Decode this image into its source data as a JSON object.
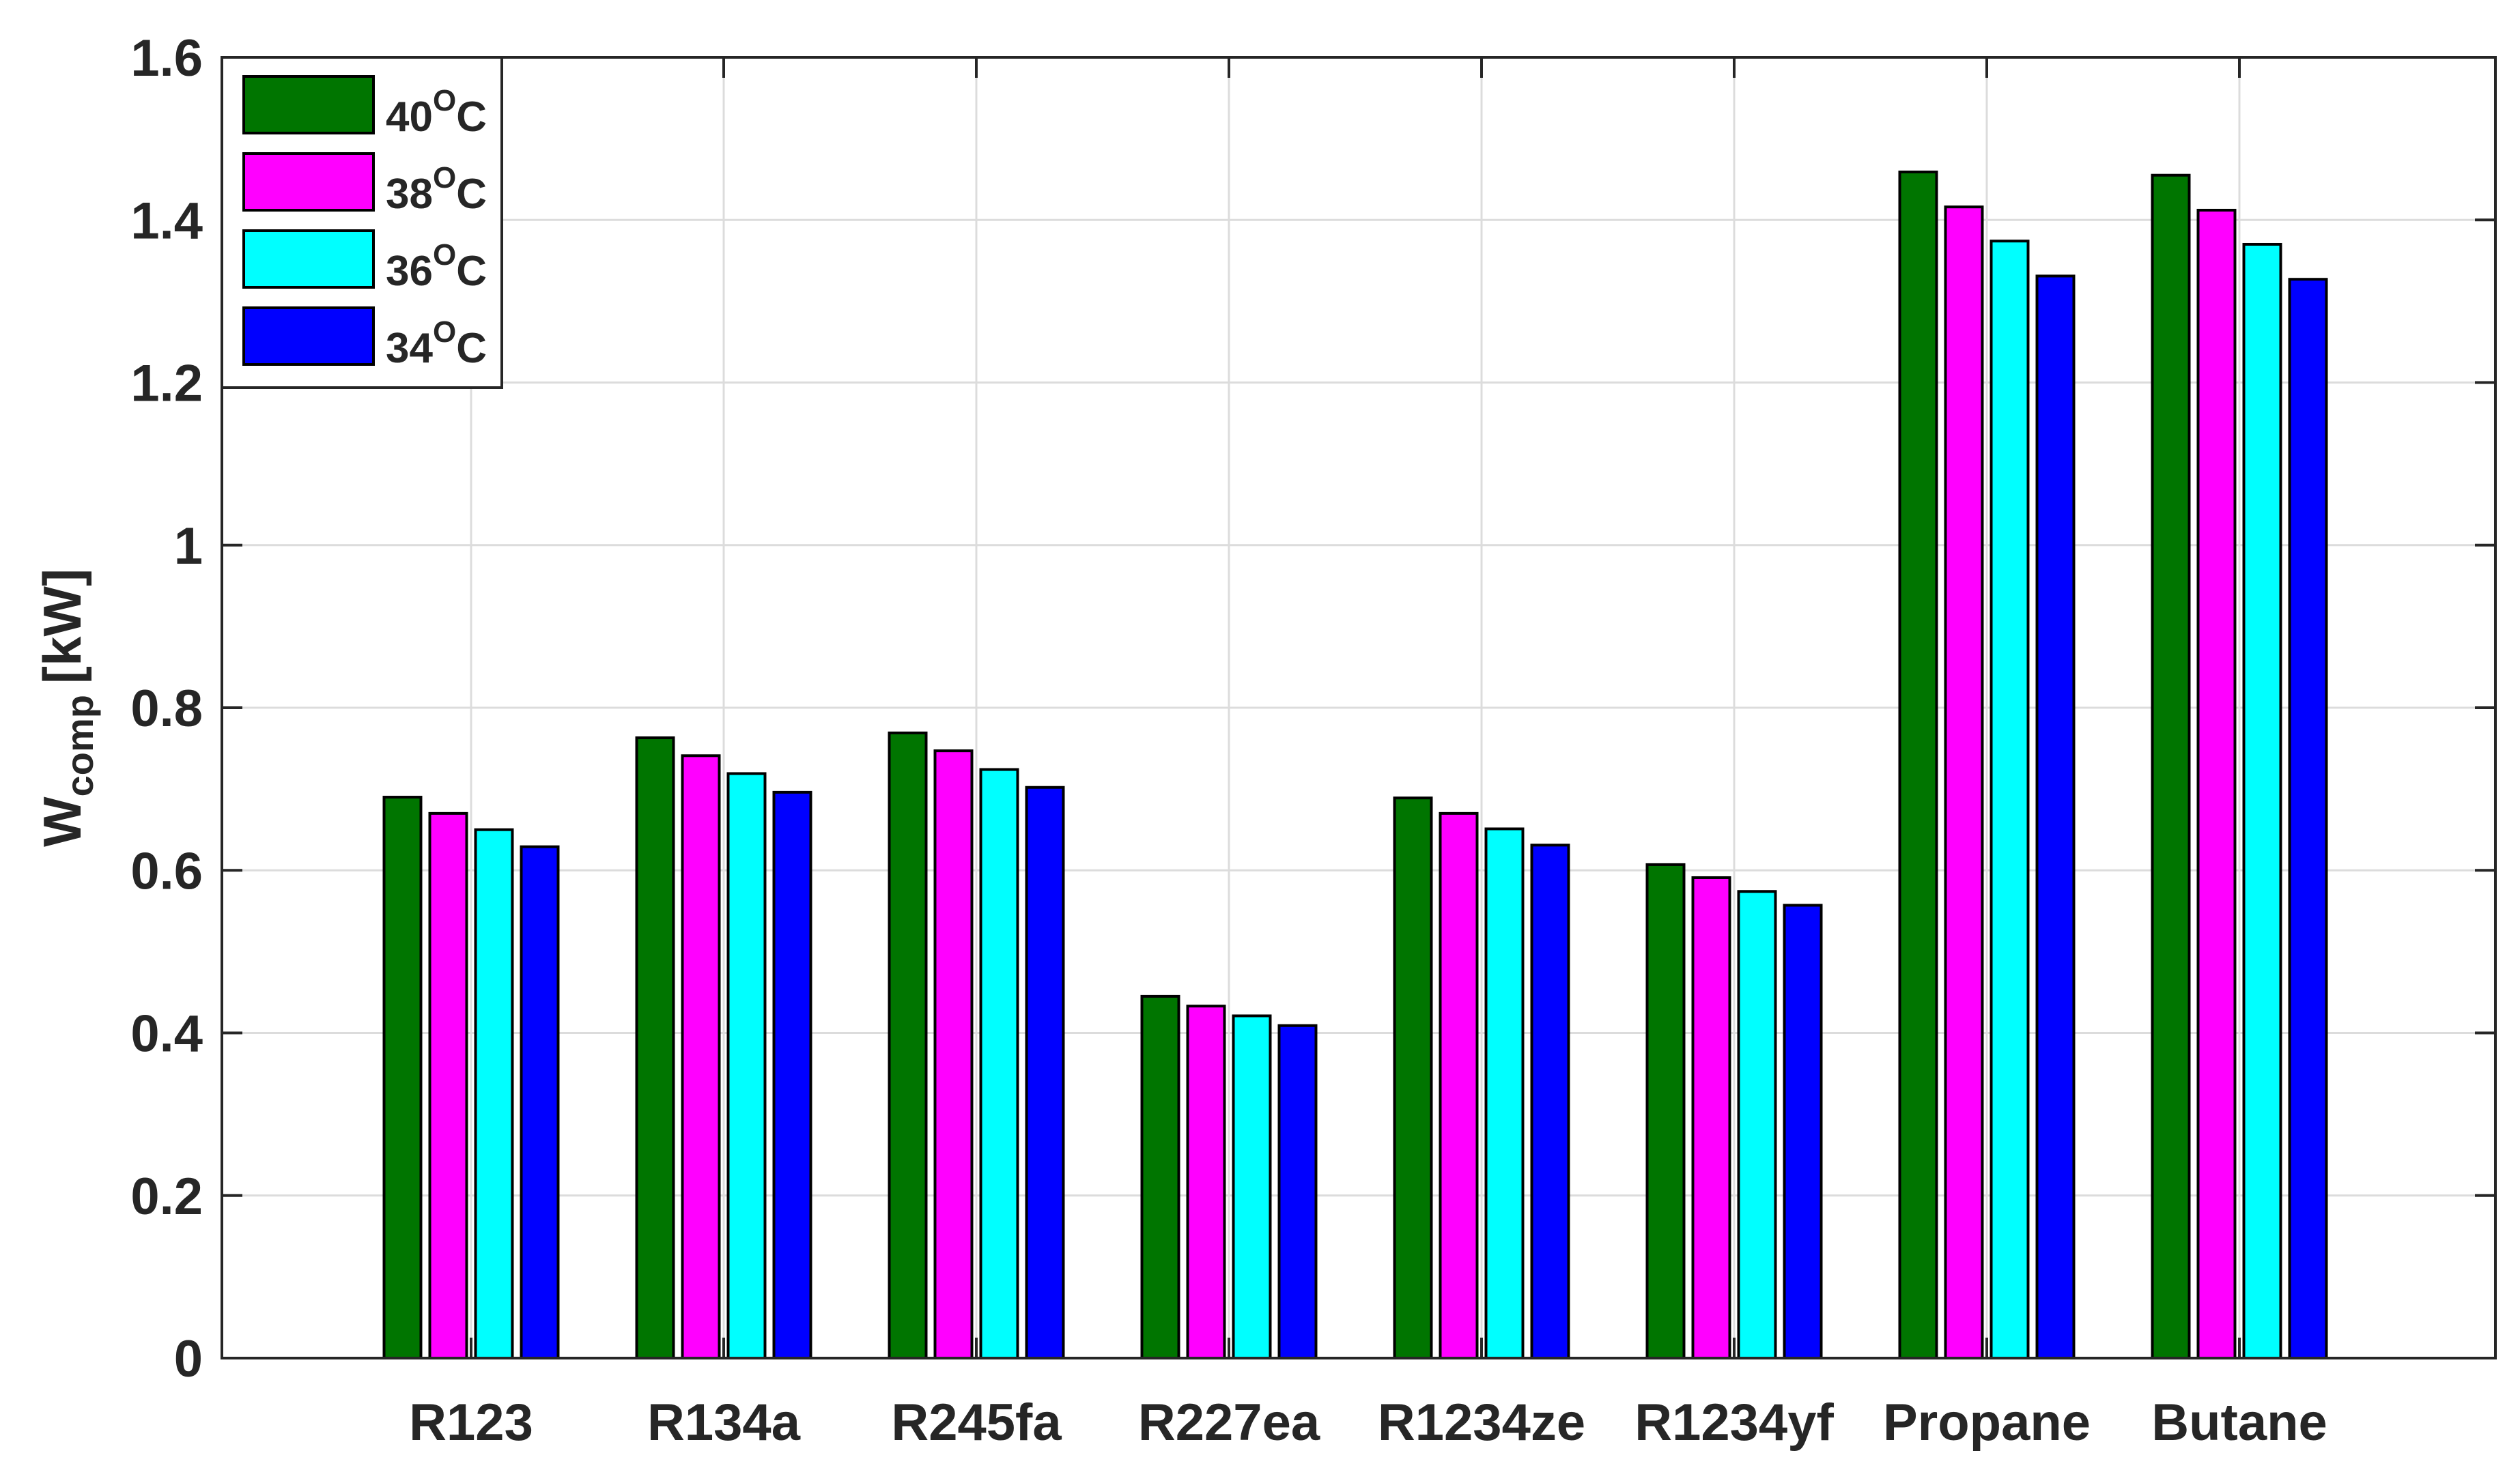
{
  "chart_data": {
    "type": "bar",
    "title": "",
    "xlabel": "",
    "ylabel": {
      "main": "W",
      "subscript": "comp",
      "unit": "[kW]"
    },
    "ylim": [
      0,
      1.6
    ],
    "yticks": [
      0,
      0.2,
      0.4,
      0.6,
      0.8,
      1,
      1.2,
      1.4,
      1.6
    ],
    "ytick_labels": [
      "0",
      "0.2",
      "0.4",
      "0.6",
      "0.8",
      "1",
      "1.2",
      "1.4",
      "1.6"
    ],
    "grid": true,
    "legend_position": "top-left",
    "categories": [
      "R123",
      "R134a",
      "R245fa",
      "R227ea",
      "R1234ze",
      "R1234yf",
      "Propane",
      "Butane"
    ],
    "series": [
      {
        "name": "40",
        "name_superscript": "O",
        "name_suffix": "C",
        "color": "#007500",
        "values": [
          0.69,
          0.763,
          0.769,
          0.445,
          0.689,
          0.607,
          1.459,
          1.455
        ]
      },
      {
        "name": "38",
        "name_superscript": "O",
        "name_suffix": "C",
        "color": "#ff00ff",
        "values": [
          0.67,
          0.741,
          0.747,
          0.433,
          0.67,
          0.591,
          1.416,
          1.412
        ]
      },
      {
        "name": "36",
        "name_superscript": "O",
        "name_suffix": "C",
        "color": "#00ffff",
        "values": [
          0.65,
          0.719,
          0.724,
          0.421,
          0.651,
          0.574,
          1.374,
          1.37
        ]
      },
      {
        "name": "34",
        "name_superscript": "O",
        "name_suffix": "C",
        "color": "#0000ff",
        "values": [
          0.629,
          0.696,
          0.702,
          0.409,
          0.631,
          0.557,
          1.331,
          1.327
        ]
      }
    ]
  }
}
